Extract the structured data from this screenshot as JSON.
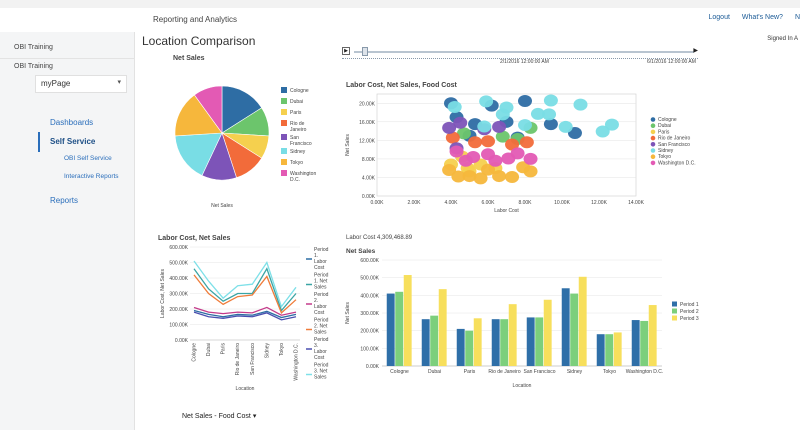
{
  "header": {
    "title": "Reporting and Analytics",
    "links": [
      "Logout",
      "What's New?",
      "N"
    ]
  },
  "sidebar": {
    "items": [
      "OBI Training",
      "OBI Training"
    ],
    "page_select": "myPage",
    "nav": {
      "dashboards": "Dashboards",
      "self_service": "Self Service",
      "obi_self_service": "OBI Self Service",
      "interactive_reports": "Interactive Reports",
      "reports": "Reports"
    }
  },
  "main": {
    "title": "Location Comparison",
    "signed_in": "Signed In A",
    "slider": {
      "play": "▶",
      "end": "▶",
      "date1": "2/1/2016 12:00:00 AM",
      "date2": "6/1/2016 12:00:00 AM"
    },
    "dropdown": "Net Sales - Food Cost"
  },
  "colors": {
    "cologne": "#2e6da4",
    "dubai": "#6cc56c",
    "paris": "#f5d04e",
    "rio": "#f26b3a",
    "sanfran": "#7d54b8",
    "sidney": "#79dde5",
    "tokyo": "#f6b73c",
    "washington": "#e35ab4"
  },
  "chart_data": [
    {
      "id": "pie",
      "type": "pie",
      "title": "Net Sales",
      "xlabel": "Net Sales",
      "slices": [
        {
          "label": "Cologne",
          "value": 16
        },
        {
          "label": "Dubai",
          "value": 10
        },
        {
          "label": "Paris",
          "value": 8
        },
        {
          "label": "Rio de Janeiro",
          "value": 11
        },
        {
          "label": "San Francisco",
          "value": 12
        },
        {
          "label": "Sidney",
          "value": 17
        },
        {
          "label": "Tokyo",
          "value": 16
        },
        {
          "label": "Washington D.C.",
          "value": 10
        }
      ],
      "legend_lines": [
        [
          "Cologne"
        ],
        [
          "Dubai"
        ],
        [
          "Paris"
        ],
        [
          "Rio de",
          "Janeiro"
        ],
        [
          "San",
          "Francisco"
        ],
        [
          "Sidney"
        ],
        [
          "Tokyo"
        ],
        [
          "Washington",
          "D.C."
        ]
      ]
    },
    {
      "id": "scatter",
      "type": "scatter",
      "title": "Labor Cost, Net Sales, Food Cost",
      "xlabel": "Labor Cost",
      "ylabel": "Net Sales",
      "xlim": [
        0,
        14000
      ],
      "ylim": [
        0,
        22000
      ],
      "xticks": [
        "0.00K",
        "2.00K",
        "4.00K",
        "6.00K",
        "8.00K",
        "10.00K",
        "12.00K",
        "14.00K"
      ],
      "yticks": [
        "0.00K",
        "4.00K",
        "8.00K",
        "12.00K",
        "16.00K",
        "20.00K"
      ],
      "legend": [
        "Cologne",
        "Dubai",
        "Paris",
        "Rio de Janeiro",
        "San Francisco",
        "Sidney",
        "Tokyo",
        "Washington D.C."
      ],
      "points": [
        {
          "s": 0,
          "x": 4000,
          "y": 20000
        },
        {
          "s": 0,
          "x": 4300,
          "y": 17000
        },
        {
          "s": 0,
          "x": 5300,
          "y": 15500
        },
        {
          "s": 0,
          "x": 6200,
          "y": 19500
        },
        {
          "s": 0,
          "x": 8000,
          "y": 20500
        },
        {
          "s": 0,
          "x": 7000,
          "y": 16000
        },
        {
          "s": 0,
          "x": 9400,
          "y": 15500
        },
        {
          "s": 0,
          "x": 10700,
          "y": 13600
        },
        {
          "s": 0,
          "x": 5000,
          "y": 13000
        },
        {
          "s": 0,
          "x": 7600,
          "y": 12600
        },
        {
          "s": 1,
          "x": 4700,
          "y": 13500
        },
        {
          "s": 1,
          "x": 6800,
          "y": 12800
        },
        {
          "s": 1,
          "x": 7600,
          "y": 12300
        },
        {
          "s": 1,
          "x": 8300,
          "y": 14700
        },
        {
          "s": 2,
          "x": 4000,
          "y": 6800
        },
        {
          "s": 2,
          "x": 4900,
          "y": 6000
        },
        {
          "s": 2,
          "x": 5600,
          "y": 6800
        },
        {
          "s": 2,
          "x": 6400,
          "y": 6000
        },
        {
          "s": 2,
          "x": 4600,
          "y": 8500
        },
        {
          "s": 2,
          "x": 5000,
          "y": 5300
        },
        {
          "s": 3,
          "x": 4100,
          "y": 12600
        },
        {
          "s": 3,
          "x": 5300,
          "y": 11600
        },
        {
          "s": 3,
          "x": 6000,
          "y": 11800
        },
        {
          "s": 3,
          "x": 7300,
          "y": 11100
        },
        {
          "s": 3,
          "x": 8100,
          "y": 11600
        },
        {
          "s": 4,
          "x": 3900,
          "y": 14700
        },
        {
          "s": 4,
          "x": 4500,
          "y": 15800
        },
        {
          "s": 4,
          "x": 5800,
          "y": 14400
        },
        {
          "s": 4,
          "x": 6600,
          "y": 14900
        },
        {
          "s": 4,
          "x": 4300,
          "y": 10300
        },
        {
          "s": 5,
          "x": 4200,
          "y": 19200
        },
        {
          "s": 5,
          "x": 5900,
          "y": 20400
        },
        {
          "s": 5,
          "x": 9400,
          "y": 20600
        },
        {
          "s": 5,
          "x": 11000,
          "y": 19700
        },
        {
          "s": 5,
          "x": 12200,
          "y": 13900
        },
        {
          "s": 5,
          "x": 12700,
          "y": 15400
        },
        {
          "s": 5,
          "x": 10200,
          "y": 14900
        },
        {
          "s": 5,
          "x": 8000,
          "y": 15300
        },
        {
          "s": 5,
          "x": 6800,
          "y": 17600
        },
        {
          "s": 5,
          "x": 7000,
          "y": 19100
        },
        {
          "s": 5,
          "x": 8700,
          "y": 17700
        },
        {
          "s": 5,
          "x": 9300,
          "y": 17600
        },
        {
          "s": 5,
          "x": 5800,
          "y": 15000
        },
        {
          "s": 6,
          "x": 3900,
          "y": 5600
        },
        {
          "s": 6,
          "x": 4400,
          "y": 4200
        },
        {
          "s": 6,
          "x": 5600,
          "y": 3800
        },
        {
          "s": 6,
          "x": 6600,
          "y": 4300
        },
        {
          "s": 6,
          "x": 7300,
          "y": 4100
        },
        {
          "s": 6,
          "x": 8300,
          "y": 5300
        },
        {
          "s": 6,
          "x": 6000,
          "y": 5700
        },
        {
          "s": 6,
          "x": 5000,
          "y": 4300
        },
        {
          "s": 6,
          "x": 7900,
          "y": 6200
        },
        {
          "s": 7,
          "x": 4300,
          "y": 9600
        },
        {
          "s": 7,
          "x": 5200,
          "y": 8400
        },
        {
          "s": 7,
          "x": 6000,
          "y": 9000
        },
        {
          "s": 7,
          "x": 7100,
          "y": 8100
        },
        {
          "s": 7,
          "x": 8300,
          "y": 8000
        },
        {
          "s": 7,
          "x": 7600,
          "y": 9200
        },
        {
          "s": 7,
          "x": 4800,
          "y": 7600
        },
        {
          "s": 7,
          "x": 6400,
          "y": 7600
        }
      ]
    },
    {
      "id": "line",
      "type": "line",
      "title": "Labor Cost, Net Sales",
      "xlabel": "Location",
      "ylabel": "Labor Cost, Net Sales",
      "ylim": [
        0,
        600000
      ],
      "yticks": [
        "0.00K",
        "100.00K",
        "200.00K",
        "300.00K",
        "400.00K",
        "500.00K",
        "600.00K"
      ],
      "categories": [
        "Cologne",
        "Dubai",
        "Paris",
        "Rio de Janeiro",
        "San Francisco",
        "Sidney",
        "Tokyo",
        "Washington D.C."
      ],
      "series": [
        {
          "name": "Period 1. Labor Cost",
          "legend": [
            "Period",
            "1.",
            "Labor",
            "Cost"
          ],
          "color": "#2e6da4",
          "values": [
            190000,
            165000,
            150000,
            165000,
            160000,
            185000,
            145000,
            165000
          ]
        },
        {
          "name": "Period 1. Net Sales",
          "legend": [
            "Period",
            "1. Net",
            "Sales"
          ],
          "color": "#3aa4a4",
          "values": [
            460000,
            330000,
            250000,
            300000,
            300000,
            460000,
            190000,
            300000
          ]
        },
        {
          "name": "Period 2. Labor Cost",
          "legend": [
            "Period",
            "2.",
            "Labor",
            "Cost"
          ],
          "color": "#c43b8a",
          "values": [
            210000,
            180000,
            170000,
            180000,
            175000,
            210000,
            160000,
            180000
          ]
        },
        {
          "name": "Period 2. Net Sales",
          "legend": [
            "Period",
            "2. Net",
            "Sales"
          ],
          "color": "#ef7c3a",
          "values": [
            420000,
            300000,
            230000,
            280000,
            290000,
            410000,
            175000,
            260000
          ]
        },
        {
          "name": "Period 3. Labor Cost",
          "legend": [
            "Period",
            "3.",
            "Labor",
            "Cost"
          ],
          "color": "#4a4fb0",
          "values": [
            180000,
            150000,
            140000,
            155000,
            150000,
            175000,
            130000,
            150000
          ]
        },
        {
          "name": "Period 3. Net Sales",
          "legend": [
            "Period",
            "3. Net",
            "Sales"
          ],
          "color": "#7ee0e8",
          "values": [
            510000,
            380000,
            270000,
            350000,
            360000,
            500000,
            215000,
            340000
          ]
        }
      ]
    },
    {
      "id": "bar",
      "type": "bar",
      "header": "Labor Cost 4,309,468.89",
      "title": "Net Sales",
      "xlabel": "Location",
      "ylabel": "Net Sales",
      "ylim": [
        0,
        600000
      ],
      "yticks": [
        "0.00K",
        "100.00K",
        "200.00K",
        "300.00K",
        "400.00K",
        "500.00K",
        "600.00K"
      ],
      "categories": [
        "Cologne",
        "Dubai",
        "Paris",
        "Rio de Janeiro",
        "San Francisco",
        "Sidney",
        "Tokyo",
        "Washington D.C."
      ],
      "series": [
        {
          "name": "Period 1",
          "color": "#2f6fa8",
          "values": [
            410000,
            265000,
            210000,
            265000,
            275000,
            440000,
            180000,
            260000
          ]
        },
        {
          "name": "Period 2",
          "color": "#7ccf7c",
          "values": [
            420000,
            285000,
            200000,
            265000,
            275000,
            410000,
            180000,
            255000
          ]
        },
        {
          "name": "Period 3",
          "color": "#f7df5c",
          "values": [
            515000,
            435000,
            270000,
            350000,
            375000,
            505000,
            190000,
            345000
          ]
        }
      ]
    }
  ]
}
